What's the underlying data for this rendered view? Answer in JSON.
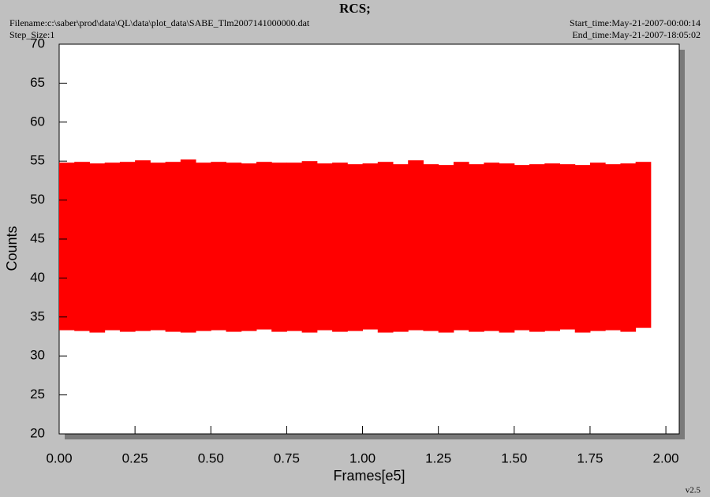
{
  "chart_data": {
    "type": "range-band",
    "title": "RCS;",
    "filename": "Filename:c:\\saber\\prod\\data\\QL\\data\\plot_data\\SABE_Tlm2007141000000.dat",
    "step_size": "Step_Size:1",
    "start_time": "Start_time:May-21-2007-00:00:14",
    "end_time": "End_time:May-21-2007-18:05:02",
    "version": "v2.5",
    "xlabel": "Frames[e5]",
    "ylabel": "Counts",
    "color": "#ff0000",
    "x": [
      0.025,
      0.075,
      0.125,
      0.175,
      0.225,
      0.275,
      0.325,
      0.375,
      0.425,
      0.475,
      0.525,
      0.575,
      0.625,
      0.675,
      0.725,
      0.775,
      0.825,
      0.875,
      0.925,
      0.975,
      1.025,
      1.075,
      1.125,
      1.175,
      1.225,
      1.275,
      1.325,
      1.375,
      1.425,
      1.475,
      1.525,
      1.575,
      1.625,
      1.675,
      1.725,
      1.775,
      1.825,
      1.875,
      1.925
    ],
    "high": [
      54.8,
      54.9,
      54.7,
      54.8,
      54.9,
      55.1,
      54.8,
      54.9,
      55.2,
      54.8,
      54.9,
      54.8,
      54.7,
      54.9,
      54.8,
      54.8,
      55.0,
      54.7,
      54.8,
      54.6,
      54.7,
      54.9,
      54.6,
      55.1,
      54.6,
      54.5,
      54.9,
      54.6,
      54.8,
      54.7,
      54.5,
      54.6,
      54.7,
      54.6,
      54.5,
      54.8,
      54.6,
      54.7,
      54.9
    ],
    "low": [
      33.3,
      33.2,
      33.0,
      33.3,
      33.1,
      33.2,
      33.3,
      33.1,
      33.0,
      33.2,
      33.3,
      33.1,
      33.2,
      33.4,
      33.1,
      33.2,
      33.0,
      33.3,
      33.1,
      33.2,
      33.4,
      33.0,
      33.1,
      33.3,
      33.2,
      33.0,
      33.3,
      33.1,
      33.2,
      33.0,
      33.3,
      33.1,
      33.2,
      33.4,
      33.0,
      33.2,
      33.3,
      33.1,
      33.6
    ],
    "xlim": [
      0,
      2.044
    ],
    "ylim": [
      20,
      70
    ],
    "xticks": [
      {
        "value": 0,
        "label": "0.00"
      },
      {
        "value": 0.25,
        "label": "0.25"
      },
      {
        "value": 0.5,
        "label": "0.50"
      },
      {
        "value": 0.75,
        "label": "0.75"
      },
      {
        "value": 1,
        "label": "1.00"
      },
      {
        "value": 1.25,
        "label": "1.25"
      },
      {
        "value": 1.5,
        "label": "1.50"
      },
      {
        "value": 1.75,
        "label": "1.75"
      },
      {
        "value": 2,
        "label": "2.00"
      }
    ],
    "yticks": [
      20,
      25,
      30,
      35,
      40,
      45,
      50,
      55,
      60,
      65,
      70
    ]
  }
}
